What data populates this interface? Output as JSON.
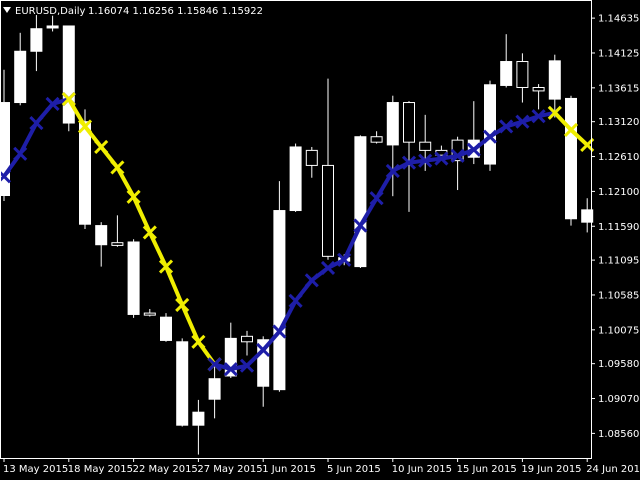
{
  "header": {
    "symbol": "EURUSD,Daily",
    "ohlc": "1.16074 1.16256 1.15846 1.15922",
    "arrow_color": "#ffffff"
  },
  "colors": {
    "background": "#000000",
    "candle_up": "#ffffff",
    "candle_down": "#000000",
    "axis": "#ffffff",
    "indicator_up": "#1e1ea8",
    "indicator_down": "#f0ee00"
  },
  "chart_data": {
    "type": "candlestick",
    "grid": false,
    "y_axis_side": "right",
    "ylim": [
      1.082,
      1.149
    ],
    "y_ticks": [
      "1.14635",
      "1.14125",
      "1.13615",
      "1.13120",
      "1.12610",
      "1.12100",
      "1.11590",
      "1.11095",
      "1.10585",
      "1.10075",
      "1.09580",
      "1.09070",
      "1.08560"
    ],
    "x_ticks": [
      "13 May 2015",
      "18 May 2015",
      "22 May 2015",
      "27 May 2015",
      "1 Jun 2015",
      "5 Jun 2015",
      "10 Jun 2015",
      "15 Jun 2015",
      "19 Jun 2015",
      "24 Jun 2015"
    ],
    "x_tick_bars": [
      0,
      4,
      8,
      12,
      16,
      20,
      24,
      28,
      32,
      36
    ],
    "candles": [
      {
        "o": 1.1204,
        "h": 1.1388,
        "l": 1.1196,
        "c": 1.134
      },
      {
        "o": 1.134,
        "h": 1.1442,
        "l": 1.1336,
        "c": 1.1415
      },
      {
        "o": 1.1415,
        "h": 1.1468,
        "l": 1.1386,
        "c": 1.1448
      },
      {
        "o": 1.145,
        "h": 1.1467,
        "l": 1.1444,
        "c": 1.1452
      },
      {
        "o": 1.131,
        "h": 1.145,
        "l": 1.1298,
        "c": 1.1452
      },
      {
        "o": 1.1162,
        "h": 1.133,
        "l": 1.1155,
        "c": 1.1312
      },
      {
        "o": 1.1132,
        "h": 1.1165,
        "l": 1.11,
        "c": 1.116
      },
      {
        "o": 1.1135,
        "h": 1.1175,
        "l": 1.1129,
        "c": 1.1131
      },
      {
        "o": 1.103,
        "h": 1.114,
        "l": 1.1025,
        "c": 1.1136
      },
      {
        "o": 1.1032,
        "h": 1.1038,
        "l": 1.1027,
        "c": 1.1029
      },
      {
        "o": 1.0992,
        "h": 1.1032,
        "l": 1.099,
        "c": 1.1026
      },
      {
        "o": 1.0868,
        "h": 1.0995,
        "l": 1.0866,
        "c": 1.099
      },
      {
        "o": 1.0868,
        "h": 1.0905,
        "l": 1.0825,
        "c": 1.0887
      },
      {
        "o": 1.0906,
        "h": 1.096,
        "l": 1.0878,
        "c": 1.0936
      },
      {
        "o": 1.094,
        "h": 1.1018,
        "l": 1.0937,
        "c": 1.0995
      },
      {
        "o": 1.0998,
        "h": 1.1006,
        "l": 1.097,
        "c": 1.099
      },
      {
        "o": 1.0925,
        "h": 1.0998,
        "l": 1.0895,
        "c": 1.0993
      },
      {
        "o": 1.092,
        "h": 1.1225,
        "l": 1.0917,
        "c": 1.1182
      },
      {
        "o": 1.1182,
        "h": 1.128,
        "l": 1.118,
        "c": 1.1275
      },
      {
        "o": 1.127,
        "h": 1.1275,
        "l": 1.123,
        "c": 1.1248
      },
      {
        "o": 1.1248,
        "h": 1.1375,
        "l": 1.111,
        "c": 1.1115
      },
      {
        "o": 1.1108,
        "h": 1.1118,
        "l": 1.1102,
        "c": 1.1113
      },
      {
        "o": 1.11,
        "h": 1.1292,
        "l": 1.1098,
        "c": 1.129
      },
      {
        "o": 1.129,
        "h": 1.1298,
        "l": 1.128,
        "c": 1.1282
      },
      {
        "o": 1.1278,
        "h": 1.135,
        "l": 1.1203,
        "c": 1.134
      },
      {
        "o": 1.134,
        "h": 1.1342,
        "l": 1.118,
        "c": 1.1282
      },
      {
        "o": 1.1282,
        "h": 1.1322,
        "l": 1.124,
        "c": 1.127
      },
      {
        "o": 1.127,
        "h": 1.1277,
        "l": 1.1263,
        "c": 1.1263
      },
      {
        "o": 1.1285,
        "h": 1.129,
        "l": 1.1212,
        "c": 1.1255
      },
      {
        "o": 1.126,
        "h": 1.1342,
        "l": 1.125,
        "c": 1.1285
      },
      {
        "o": 1.125,
        "h": 1.1372,
        "l": 1.124,
        "c": 1.1366
      },
      {
        "o": 1.1365,
        "h": 1.144,
        "l": 1.1362,
        "c": 1.14
      },
      {
        "o": 1.14,
        "h": 1.1412,
        "l": 1.134,
        "c": 1.1362
      },
      {
        "o": 1.1362,
        "h": 1.1367,
        "l": 1.133,
        "c": 1.1357
      },
      {
        "o": 1.1345,
        "h": 1.141,
        "l": 1.1318,
        "c": 1.1401
      },
      {
        "o": 1.117,
        "h": 1.135,
        "l": 1.116,
        "c": 1.1346
      },
      {
        "o": 1.1165,
        "h": 1.12,
        "l": 1.115,
        "c": 1.1183
      }
    ],
    "indicator_series": [
      {
        "color": "#1e1ea8",
        "points": [
          [
            0,
            1.1232
          ],
          [
            1,
            1.1265
          ],
          [
            2,
            1.131
          ],
          [
            3,
            1.1338
          ],
          [
            4,
            1.1345
          ]
        ]
      },
      {
        "color": "#f0ee00",
        "points": [
          [
            4,
            1.1345
          ],
          [
            5,
            1.1305
          ],
          [
            6,
            1.1275
          ],
          [
            7,
            1.1245
          ],
          [
            8,
            1.1202
          ],
          [
            9,
            1.115
          ],
          [
            10,
            1.11
          ],
          [
            11,
            1.1044
          ],
          [
            12,
            1.099
          ],
          [
            13,
            1.0957
          ]
        ]
      },
      {
        "color": "#1e1ea8",
        "points": [
          [
            13,
            1.0957
          ],
          [
            14,
            1.095
          ],
          [
            15,
            1.0955
          ],
          [
            16,
            1.0978
          ],
          [
            17,
            1.1005
          ],
          [
            18,
            1.105
          ],
          [
            19,
            1.108
          ],
          [
            20,
            1.1098
          ],
          [
            21,
            1.111
          ],
          [
            22,
            1.116
          ],
          [
            23,
            1.12
          ],
          [
            24,
            1.124
          ],
          [
            25,
            1.1252
          ],
          [
            26,
            1.1255
          ],
          [
            27,
            1.1258
          ],
          [
            28,
            1.1262
          ],
          [
            29,
            1.1271
          ],
          [
            30,
            1.129
          ],
          [
            31,
            1.1305
          ],
          [
            32,
            1.1312
          ],
          [
            33,
            1.132
          ],
          [
            34,
            1.1325
          ]
        ]
      },
      {
        "color": "#f0ee00",
        "points": [
          [
            34,
            1.1325
          ],
          [
            35,
            1.13
          ],
          [
            36,
            1.1278
          ]
        ]
      }
    ]
  }
}
